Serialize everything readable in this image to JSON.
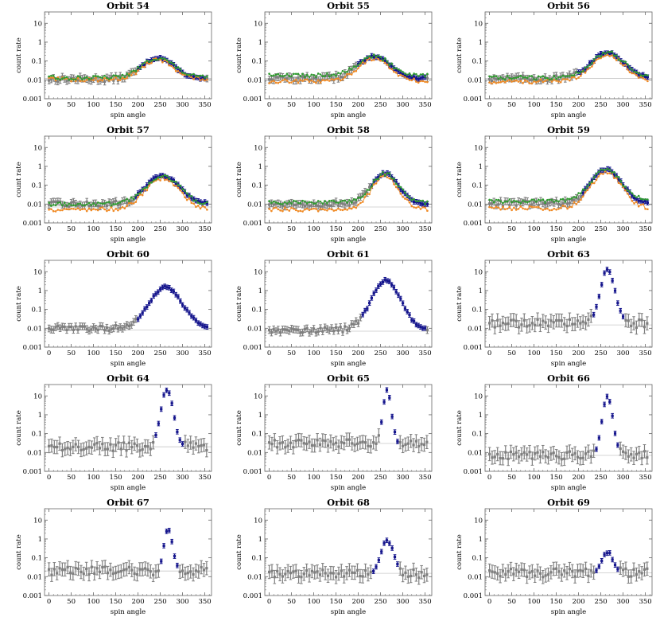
{
  "figure": {
    "xlabel": "spin angle",
    "ylabel": "count rate",
    "x_ticks": [
      0,
      50,
      100,
      150,
      200,
      250,
      300,
      350
    ],
    "y_ticks": [
      0.001,
      0.01,
      0.1,
      1,
      10
    ],
    "y_tick_labels": [
      "0.001",
      "0.01",
      "0.1",
      "1",
      "10"
    ]
  },
  "colors": {
    "gray": "#7f7f7f",
    "blue": "#14148c",
    "orange": "#f08a24",
    "green": "#2f9b2f",
    "reference": "#c8c8c8",
    "frame": "#666666"
  },
  "chart_data": [
    {
      "type": "scatter",
      "title": "Orbit 54",
      "xlim": [
        -10,
        365
      ],
      "ylim": [
        0.001,
        40
      ],
      "yscale": "log",
      "ref_level": 0.012,
      "ranges": {
        "start": 200,
        "end": 350,
        "peak_x": 245,
        "peak_y": 0.15
      },
      "series": [
        {
          "name": "gray",
          "level": 0.011,
          "style": "errorbar"
        },
        {
          "name": "blue",
          "level": 0.011,
          "style": "errorbar"
        },
        {
          "name": "orange",
          "level": 0.014,
          "style": "line"
        },
        {
          "name": "green",
          "level": 0.013,
          "style": "line"
        }
      ]
    },
    {
      "type": "scatter",
      "title": "Orbit 55",
      "xlim": [
        -10,
        365
      ],
      "ylim": [
        0.001,
        40
      ],
      "yscale": "log",
      "ref_level": 0.012,
      "ranges": {
        "start": 200,
        "end": 350,
        "peak_x": 235,
        "peak_y": 0.18
      },
      "series": [
        {
          "name": "gray",
          "level": 0.012,
          "style": "errorbar"
        },
        {
          "name": "blue",
          "level": 0.012,
          "style": "errorbar"
        },
        {
          "name": "orange",
          "level": 0.011,
          "style": "line"
        },
        {
          "name": "green",
          "level": 0.018,
          "style": "line"
        }
      ]
    },
    {
      "type": "scatter",
      "title": "Orbit 56",
      "xlim": [
        -10,
        365
      ],
      "ylim": [
        0.001,
        40
      ],
      "yscale": "log",
      "ref_level": 0.012,
      "ranges": {
        "start": 200,
        "end": 355,
        "peak_x": 265,
        "peak_y": 0.28
      },
      "series": [
        {
          "name": "gray",
          "level": 0.012,
          "style": "errorbar"
        },
        {
          "name": "blue",
          "level": 0.012,
          "style": "errorbar"
        },
        {
          "name": "orange",
          "level": 0.011,
          "style": "line"
        },
        {
          "name": "green",
          "level": 0.013,
          "style": "line"
        }
      ]
    },
    {
      "type": "scatter",
      "title": "Orbit 57",
      "xlim": [
        -10,
        365
      ],
      "ylim": [
        0.001,
        40
      ],
      "yscale": "log",
      "ref_level": 0.007,
      "ranges": {
        "start": 195,
        "end": 355,
        "peak_x": 255,
        "peak_y": 0.32
      },
      "series": [
        {
          "name": "gray",
          "level": 0.01,
          "style": "errorbar"
        },
        {
          "name": "blue",
          "level": 0.01,
          "style": "errorbar"
        },
        {
          "name": "orange",
          "level": 0.007,
          "style": "line"
        },
        {
          "name": "green",
          "level": 0.01,
          "style": "line"
        }
      ]
    },
    {
      "type": "scatter",
      "title": "Orbit 58",
      "xlim": [
        -10,
        365
      ],
      "ylim": [
        0.001,
        40
      ],
      "yscale": "log",
      "ref_level": 0.007,
      "ranges": {
        "start": 230,
        "end": 355,
        "peak_x": 260,
        "peak_y": 0.42
      },
      "series": [
        {
          "name": "gray",
          "level": 0.01,
          "style": "errorbar"
        },
        {
          "name": "blue",
          "level": 0.01,
          "style": "errorbar"
        },
        {
          "name": "orange",
          "level": 0.007,
          "style": "line"
        },
        {
          "name": "green",
          "level": 0.012,
          "style": "line"
        }
      ]
    },
    {
      "type": "scatter",
      "title": "Orbit 59",
      "xlim": [
        -10,
        365
      ],
      "ylim": [
        0.001,
        40
      ],
      "yscale": "log",
      "ref_level": 0.009,
      "ranges": {
        "start": 210,
        "end": 355,
        "peak_x": 262,
        "peak_y": 0.7
      },
      "series": [
        {
          "name": "gray",
          "level": 0.011,
          "style": "errorbar"
        },
        {
          "name": "blue",
          "level": 0.011,
          "style": "errorbar"
        },
        {
          "name": "orange",
          "level": 0.008,
          "style": "line"
        },
        {
          "name": "green",
          "level": 0.014,
          "style": "line"
        }
      ]
    },
    {
      "type": "scatter",
      "title": "Orbit 60",
      "xlim": [
        -10,
        365
      ],
      "ylim": [
        0.001,
        40
      ],
      "yscale": "log",
      "ref_level": 0.008,
      "ranges": {
        "start": 200,
        "end": 355,
        "peak_x": 262,
        "peak_y": 1.5
      },
      "series": [
        {
          "name": "gray",
          "level": 0.01,
          "style": "errorbar"
        },
        {
          "name": "blue",
          "level": 0.01,
          "style": "errorbar"
        }
      ]
    },
    {
      "type": "scatter",
      "title": "Orbit 61",
      "xlim": [
        -10,
        365
      ],
      "ylim": [
        0.001,
        40
      ],
      "yscale": "log",
      "ref_level": 0.007,
      "ranges": {
        "start": 210,
        "end": 350,
        "peak_x": 262,
        "peak_y": 3.5
      },
      "series": [
        {
          "name": "gray",
          "level": 0.008,
          "style": "errorbar"
        },
        {
          "name": "blue",
          "level": 0.008,
          "style": "errorbar"
        }
      ]
    },
    {
      "type": "scatter",
      "title": "Orbit 63",
      "xlim": [
        -10,
        365
      ],
      "ylim": [
        0.001,
        40
      ],
      "yscale": "log",
      "ref_level": 0.015,
      "ranges": {
        "start": 230,
        "end": 300,
        "peak_x": 265,
        "peak_y": 13
      },
      "series": [
        {
          "name": "gray",
          "level": 0.018,
          "style": "errorbar"
        },
        {
          "name": "blue",
          "level": 0.018,
          "style": "errorbar"
        }
      ]
    },
    {
      "type": "scatter",
      "title": "Orbit 64",
      "xlim": [
        -10,
        365
      ],
      "ylim": [
        0.001,
        40
      ],
      "yscale": "log",
      "ref_level": 0.02,
      "ranges": {
        "start": 240,
        "end": 300,
        "peak_x": 265,
        "peak_y": 22
      },
      "series": [
        {
          "name": "gray",
          "level": 0.02,
          "style": "errorbar"
        },
        {
          "name": "blue",
          "level": 0.02,
          "style": "errorbar"
        }
      ]
    },
    {
      "type": "scatter",
      "title": "Orbit 65",
      "xlim": [
        -10,
        365
      ],
      "ylim": [
        0.001,
        40
      ],
      "yscale": "log",
      "ref_level": 0.03,
      "ranges": {
        "start": 250,
        "end": 290,
        "peak_x": 265,
        "peak_y": 20
      },
      "series": [
        {
          "name": "gray",
          "level": 0.03,
          "style": "errorbar"
        },
        {
          "name": "blue",
          "level": 0.03,
          "style": "errorbar"
        }
      ]
    },
    {
      "type": "scatter",
      "title": "Orbit 66",
      "xlim": [
        -10,
        365
      ],
      "ylim": [
        0.001,
        40
      ],
      "yscale": "log",
      "ref_level": 0.007,
      "ranges": {
        "start": 240,
        "end": 290,
        "peak_x": 265,
        "peak_y": 10
      },
      "series": [
        {
          "name": "gray",
          "level": 0.007,
          "style": "errorbar"
        },
        {
          "name": "blue",
          "level": 0.007,
          "style": "errorbar"
        }
      ]
    },
    {
      "type": "scatter",
      "title": "Orbit 67",
      "xlim": [
        -10,
        365
      ],
      "ylim": [
        0.001,
        40
      ],
      "yscale": "log",
      "ref_level": 0.02,
      "ranges": {
        "start": 250,
        "end": 290,
        "peak_x": 268,
        "peak_y": 3.5
      },
      "series": [
        {
          "name": "gray",
          "level": 0.02,
          "style": "errorbar"
        },
        {
          "name": "blue",
          "level": 0.02,
          "style": "errorbar"
        }
      ]
    },
    {
      "type": "scatter",
      "title": "Orbit 68",
      "xlim": [
        -10,
        365
      ],
      "ylim": [
        0.001,
        40
      ],
      "yscale": "log",
      "ref_level": 0.015,
      "ranges": {
        "start": 230,
        "end": 290,
        "peak_x": 265,
        "peak_y": 0.85
      },
      "series": [
        {
          "name": "gray",
          "level": 0.014,
          "style": "errorbar"
        },
        {
          "name": "blue",
          "level": 0.014,
          "style": "errorbar"
        }
      ]
    },
    {
      "type": "scatter",
      "title": "Orbit 69",
      "xlim": [
        -10,
        365
      ],
      "ylim": [
        0.001,
        40
      ],
      "yscale": "log",
      "ref_level": 0.016,
      "ranges": {
        "start": 240,
        "end": 290,
        "peak_x": 265,
        "peak_y": 0.2
      },
      "series": [
        {
          "name": "gray",
          "level": 0.016,
          "style": "errorbar"
        },
        {
          "name": "blue",
          "level": 0.016,
          "style": "errorbar"
        }
      ]
    }
  ]
}
